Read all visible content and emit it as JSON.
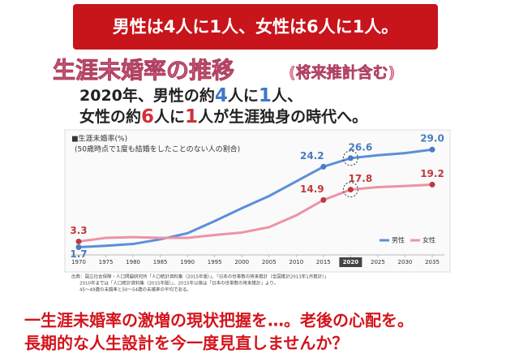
{
  "banner": "男性は4人に1人、女性は6人に1人。",
  "title": "生涯未婚率の推移",
  "title_note": "(将来推計含む)",
  "lead": {
    "line1": [
      "2020年、男性の約",
      "4",
      "人に",
      "1",
      "人、"
    ],
    "line2": [
      "女性の約",
      "6",
      "人に",
      "1",
      "人が生涯独身の時代へ。"
    ]
  },
  "chart_data": {
    "type": "line",
    "title": "■生涯未婚率(%)",
    "subtitle": "(50歳時点で1度も結婚をしたことのない人の割合)",
    "x": [
      1970,
      1975,
      1980,
      1985,
      1990,
      1995,
      2000,
      2005,
      2010,
      2015,
      2020,
      2025,
      2030,
      2035
    ],
    "xticks": [
      1970,
      1975,
      1980,
      1985,
      1990,
      1995,
      2000,
      2005,
      2010,
      2015,
      2020,
      2025,
      2030,
      2035
    ],
    "xlim": [
      1970,
      2035
    ],
    "ylim": [
      0,
      32
    ],
    "highlight_x": 2020,
    "grid": false,
    "legend": "bottom-right",
    "series": [
      {
        "name": "男性",
        "color": "#5b8fd9",
        "label_color": "#4a7cc4",
        "values": [
          1.7,
          2.1,
          2.6,
          3.9,
          5.6,
          9.0,
          12.6,
          16.0,
          20.1,
          24.2,
          26.6,
          27.4,
          28.0,
          29.0
        ],
        "value_labels": [
          "1.7",
          null,
          null,
          null,
          null,
          null,
          null,
          null,
          null,
          "24.2",
          "26.6",
          null,
          null,
          "29.0"
        ]
      },
      {
        "name": "女性",
        "color": "#ec93a6",
        "label_color": "#c0393b",
        "values": [
          3.3,
          4.3,
          4.5,
          4.3,
          4.3,
          5.1,
          5.8,
          7.3,
          10.6,
          14.9,
          17.8,
          18.5,
          18.8,
          19.2
        ],
        "value_labels": [
          "3.3",
          null,
          null,
          null,
          null,
          null,
          null,
          null,
          null,
          "14.9",
          "17.8",
          null,
          null,
          "19.2"
        ]
      }
    ],
    "source": [
      "出典：国立社会保障・人口問題研究所「人口統計資料集（2015年版）」、「日本の世帯数の将来推計（全国推計2013年1月推計）」",
      "2010年までは「人口統計資料集（2015年版）」、2015年以後は「日本の世帯数の将来推計」より。",
      "45〜49歳の未婚率と50〜54歳の未婚率の平均である。"
    ]
  },
  "footer": [
    "一生涯未婚率の激増の現状把握を…。老後の心配を。",
    "長期的な人生設計を今一度見直しませんか？"
  ]
}
